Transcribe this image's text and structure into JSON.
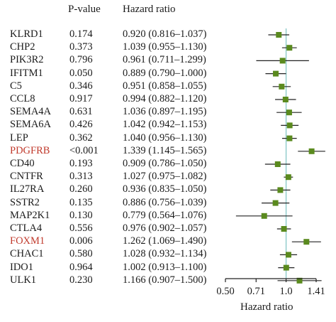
{
  "headers": {
    "pvalue": "P-value",
    "hr": "Hazard ratio"
  },
  "colors": {
    "highlight": "#c0392b",
    "normal": "#1a1a1a",
    "marker": "#5a8a1e",
    "refline": "#7fc4c4",
    "ci": "#222222"
  },
  "chart_data": {
    "type": "forest",
    "title": "",
    "xlabel": "Hazard ratio",
    "x_scale": "log",
    "xlim": [
      0.5,
      1.41
    ],
    "xticks": [
      0.5,
      0.71,
      1.0,
      1.41
    ],
    "xtick_labels": [
      "0.50",
      "0.71",
      "1.0",
      "1.41"
    ],
    "reference_line": 1.0,
    "rows": [
      {
        "gene": "KLRD1",
        "p": "0.174",
        "hr": 0.92,
        "lo": 0.816,
        "hi": 1.037,
        "hr_text": "0.920 (0.816–1.037)",
        "highlight": false
      },
      {
        "gene": "CHP2",
        "p": "0.373",
        "hr": 1.039,
        "lo": 0.955,
        "hi": 1.13,
        "hr_text": "1.039 (0.955–1.130)",
        "highlight": false
      },
      {
        "gene": "PIK3R2",
        "p": "0.796",
        "hr": 0.961,
        "lo": 0.711,
        "hi": 1.299,
        "hr_text": "0.961 (0.711–1.299)",
        "highlight": false
      },
      {
        "gene": "IFITM1",
        "p": "0.050",
        "hr": 0.889,
        "lo": 0.79,
        "hi": 1.0,
        "hr_text": "0.889 (0.790–1.000)",
        "highlight": false
      },
      {
        "gene": "C5",
        "p": "0.346",
        "hr": 0.951,
        "lo": 0.858,
        "hi": 1.055,
        "hr_text": "0.951 (0.858–1.055)",
        "highlight": false
      },
      {
        "gene": "CCL8",
        "p": "0.917",
        "hr": 0.994,
        "lo": 0.882,
        "hi": 1.12,
        "hr_text": "0.994 (0.882–1.120)",
        "highlight": false
      },
      {
        "gene": "SEMA4A",
        "p": "0.631",
        "hr": 1.036,
        "lo": 0.897,
        "hi": 1.195,
        "hr_text": "1.036 (0.897–1.195)",
        "highlight": false
      },
      {
        "gene": "SEMA6A",
        "p": "0.426",
        "hr": 1.042,
        "lo": 0.942,
        "hi": 1.153,
        "hr_text": "1.042 (0.942–1.153)",
        "highlight": false
      },
      {
        "gene": "LEP",
        "p": "0.362",
        "hr": 1.04,
        "lo": 0.956,
        "hi": 1.13,
        "hr_text": "1.040 (0.956–1.130)",
        "highlight": false
      },
      {
        "gene": "PDGFRB",
        "p": "<0.001",
        "hr": 1.339,
        "lo": 1.145,
        "hi": 1.565,
        "hr_text": "1.339 (1.145–1.565)",
        "highlight": true
      },
      {
        "gene": "CD40",
        "p": "0.193",
        "hr": 0.909,
        "lo": 0.786,
        "hi": 1.05,
        "hr_text": "0.909 (0.786–1.050)",
        "highlight": false
      },
      {
        "gene": "CNTFR",
        "p": "0.313",
        "hr": 1.027,
        "lo": 0.975,
        "hi": 1.082,
        "hr_text": "1.027 (0.975–1.082)",
        "highlight": false
      },
      {
        "gene": "IL27RA",
        "p": "0.260",
        "hr": 0.936,
        "lo": 0.835,
        "hi": 1.05,
        "hr_text": "0.936 (0.835–1.050)",
        "highlight": false
      },
      {
        "gene": "SSTR2",
        "p": "0.135",
        "hr": 0.886,
        "lo": 0.756,
        "hi": 1.039,
        "hr_text": "0.886 (0.756–1.039)",
        "highlight": false
      },
      {
        "gene": "MAP2K1",
        "p": "0.130",
        "hr": 0.779,
        "lo": 0.564,
        "hi": 1.076,
        "hr_text": "0.779 (0.564–1.076)",
        "highlight": false
      },
      {
        "gene": "CTLA4",
        "p": "0.556",
        "hr": 0.976,
        "lo": 0.902,
        "hi": 1.057,
        "hr_text": "0.976 (0.902–1.057)",
        "highlight": false
      },
      {
        "gene": "FOXM1",
        "p": "0.006",
        "hr": 1.262,
        "lo": 1.069,
        "hi": 1.49,
        "hr_text": "1.262 (1.069–1.490)",
        "highlight": true
      },
      {
        "gene": "CHAC1",
        "p": "0.580",
        "hr": 1.028,
        "lo": 0.932,
        "hi": 1.134,
        "hr_text": "1.028 (0.932–1.134)",
        "highlight": false
      },
      {
        "gene": "IDO1",
        "p": "0.964",
        "hr": 1.002,
        "lo": 0.913,
        "hi": 1.1,
        "hr_text": "1.002 (0.913–1.100)",
        "highlight": false
      },
      {
        "gene": "ULK1",
        "p": "0.230",
        "hr": 1.166,
        "lo": 0.907,
        "hi": 1.5,
        "hr_text": "1.166 (0.907–1.500)",
        "highlight": false
      }
    ]
  }
}
